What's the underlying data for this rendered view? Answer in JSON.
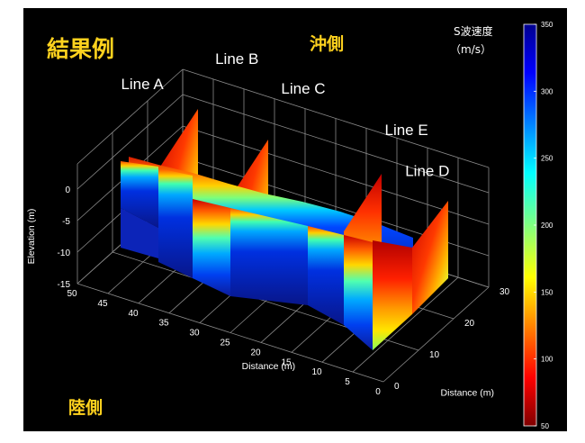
{
  "title": "結果例",
  "labels": {
    "offshore": "沖側",
    "landward": "陸側"
  },
  "chart_data": {
    "type": "heatmap",
    "subtype": "3D fence diagram of seismic cross-sections",
    "xlabel": "Distance (m)",
    "ylabel": "Distance (m)",
    "zlabel": "Elevation (m)",
    "x_ticks": [
      "0",
      "5",
      "10",
      "15",
      "20",
      "25",
      "30",
      "35",
      "40",
      "45",
      "50"
    ],
    "y_ticks": [
      "0",
      "10",
      "20",
      "30"
    ],
    "z_ticks": [
      "0",
      "-5",
      "-10",
      "-15"
    ],
    "xlim": [
      0,
      50
    ],
    "ylim": [
      0,
      30
    ],
    "zlim": [
      -15,
      0
    ],
    "colorbar": {
      "title_line1": "S波速度",
      "title_line2": "（m/s）",
      "min": 50,
      "max": 350,
      "ticks": [
        "350",
        "300",
        "250",
        "200",
        "150",
        "100",
        "50"
      ],
      "colormap": "jet"
    },
    "lines": [
      {
        "name": "Line A",
        "orientation": "along x",
        "y": 15,
        "x_range": [
          0,
          50
        ]
      },
      {
        "name": "Line B",
        "orientation": "along y",
        "x": 40,
        "y_range": [
          0,
          30
        ]
      },
      {
        "name": "Line C",
        "orientation": "along y",
        "x": 28,
        "y_range": [
          0,
          30
        ]
      },
      {
        "name": "Line E",
        "orientation": "along y",
        "x": 10,
        "y_range": [
          0,
          30
        ]
      },
      {
        "name": "Line D",
        "orientation": "along y",
        "x": 2,
        "y_range": [
          0,
          30
        ]
      }
    ]
  }
}
